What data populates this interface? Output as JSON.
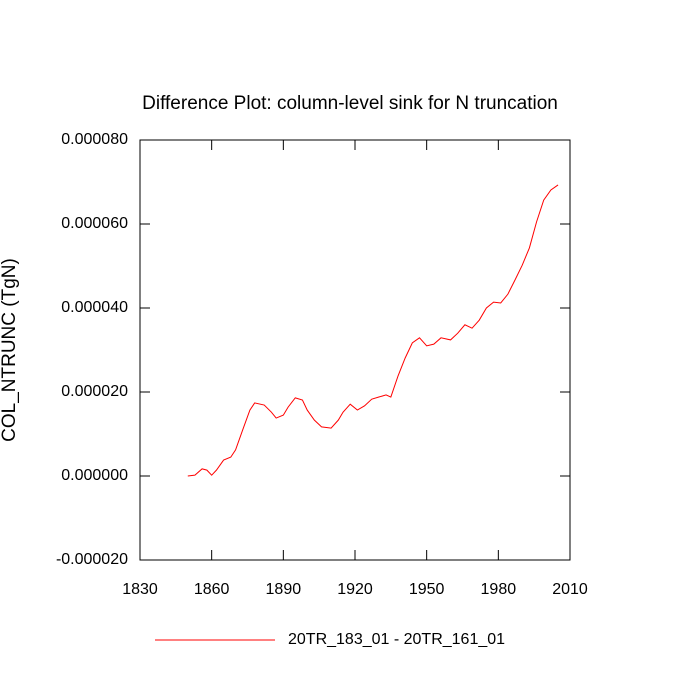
{
  "chart_data": {
    "type": "line",
    "title": "Difference Plot: column-level sink for N truncation",
    "ylabel": "COL_NTRUNC  (TgN)",
    "xlim": [
      1830,
      2010
    ],
    "xticks": [
      1830,
      1860,
      1890,
      1920,
      1950,
      1980,
      2010
    ],
    "ylim": [
      -2e-05,
      8e-05
    ],
    "yticks": [
      {
        "value": -2e-05,
        "label": "-0.000020"
      },
      {
        "value": 0,
        "label": "0.000000"
      },
      {
        "value": 2e-05,
        "label": "0.000020"
      },
      {
        "value": 4e-05,
        "label": "0.000040"
      },
      {
        "value": 6e-05,
        "label": "0.000060"
      },
      {
        "value": 8e-05,
        "label": "0.000080"
      }
    ],
    "x": [
      1850,
      1853,
      1856,
      1858,
      1860,
      1862,
      1865,
      1868,
      1870,
      1873,
      1876,
      1878,
      1882,
      1885,
      1887,
      1890,
      1892,
      1895,
      1898,
      1900,
      1903,
      1906,
      1910,
      1913,
      1915,
      1918,
      1921,
      1924,
      1927,
      1930,
      1933,
      1935,
      1938,
      1941,
      1944,
      1947,
      1950,
      1953,
      1956,
      1960,
      1963,
      1966,
      1969,
      1972,
      1975,
      1978,
      1981,
      1984,
      1987,
      1990,
      1993,
      1996,
      1999,
      2002,
      2005
    ],
    "series": [
      {
        "name": "20TR_183_01 - 20TR_161_01",
        "color": "#ff0000",
        "values": [
          0,
          2e-07,
          1.7e-06,
          1.4e-06,
          2e-07,
          1.4e-06,
          3.8e-06,
          4.5e-06,
          6.2e-06,
          1.1e-05,
          1.57e-05,
          1.74e-05,
          1.69e-05,
          1.52e-05,
          1.38e-05,
          1.45e-05,
          1.64e-05,
          1.86e-05,
          1.81e-05,
          1.57e-05,
          1.33e-05,
          1.17e-05,
          1.14e-05,
          1.33e-05,
          1.52e-05,
          1.71e-05,
          1.57e-05,
          1.67e-05,
          1.83e-05,
          1.88e-05,
          1.93e-05,
          1.88e-05,
          2.38e-05,
          2.81e-05,
          3.17e-05,
          3.29e-05,
          3.1e-05,
          3.14e-05,
          3.29e-05,
          3.24e-05,
          3.4e-05,
          3.6e-05,
          3.52e-05,
          3.71e-05,
          4e-05,
          4.14e-05,
          4.12e-05,
          4.33e-05,
          4.67e-05,
          5.02e-05,
          5.43e-05,
          6.05e-05,
          6.57e-05,
          6.81e-05,
          6.93e-05
        ]
      }
    ]
  }
}
